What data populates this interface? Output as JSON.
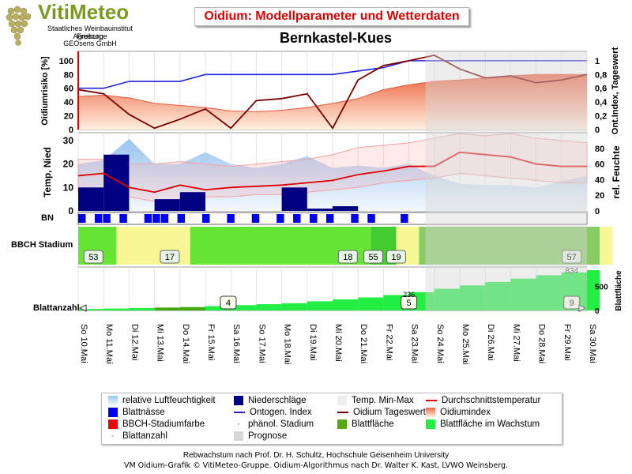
{
  "logo": {
    "title": "VitiMeteo",
    "line1": "Staatliches Weinbauinstitut Freiburg",
    "line2": "Agroscope",
    "line3": "GEOsens GmbH"
  },
  "header": {
    "title": "Oidium: Modellparameter und Wetterdaten",
    "location": "Bernkastel-Kues"
  },
  "axes": {
    "panel1_left_label": "Oidiumrisiko [%]",
    "panel1_right_label": "Ont.Index, Tageswert",
    "panel2_left_label": "Temp, Nied",
    "panel2_right_label": "rel. Feuchte",
    "bn_label": "BN",
    "bbch_label": "BBCH Stadium",
    "blatt_label": "Blattanzahl",
    "blatt_right_label": "Blattfläche",
    "panel1_left_ticks": [
      "0",
      "20",
      "40",
      "60",
      "80",
      "100"
    ],
    "panel1_right_ticks": [
      "0",
      "0,2",
      "0,4",
      "0,6",
      "0,8",
      "1"
    ],
    "panel2_left_ticks": [
      "0",
      "10",
      "20",
      "30"
    ],
    "panel2_right_ticks": [
      "0",
      "20",
      "40",
      "60",
      "80"
    ],
    "blatt_right_ticks": [
      "0",
      "500"
    ]
  },
  "dates": [
    "So 10.Mai",
    "Mo 11.Mai",
    "Di 12.Mai",
    "Mi 13.Mai",
    "Do 14.Mai",
    "Fr 15.Mai",
    "Sa 16.Mai",
    "So 17.Mai",
    "Mo 18.Mai",
    "Di 19.Mai",
    "Mi 20.Mai",
    "Do 21.Mai",
    "Fr 22.Mai",
    "Sa 23.Mai",
    "So 24.Mai",
    "Mo 25.Mai",
    "Di 26.Mai",
    "Mi 27.Mai",
    "Do 28.Mai",
    "Fr 29.Mai",
    "Sa 30.Mai"
  ],
  "series": {
    "ontogen_index": [
      0.6,
      0.6,
      0.7,
      0.7,
      0.7,
      0.8,
      0.8,
      0.8,
      0.8,
      0.8,
      0.8,
      0.85,
      0.9,
      1.0,
      1.0,
      1.0,
      1.0,
      1.0,
      1.0,
      1.0,
      1.0
    ],
    "oidium_tageswert": [
      0.58,
      0.52,
      0.22,
      0.02,
      0.15,
      0.3,
      0.02,
      0.42,
      0.45,
      0.52,
      0.02,
      0.72,
      0.93,
      1.0,
      1.08,
      0.88,
      0.75,
      0.78,
      0.68,
      0.72,
      0.8
    ],
    "oidiumindex_pct": [
      48,
      50,
      46,
      38,
      35,
      32,
      27,
      26,
      28,
      32,
      38,
      45,
      58,
      65,
      70,
      72,
      75,
      78,
      80,
      80,
      80
    ],
    "durchschnittstemperatur": [
      15,
      16,
      10,
      8,
      11,
      9,
      10,
      10.5,
      11,
      12,
      13,
      15.5,
      17,
      19,
      19,
      25,
      24,
      23,
      20,
      19,
      19
    ],
    "temp_min": [
      8,
      9,
      6,
      4,
      5,
      6,
      6,
      7,
      7,
      8,
      9,
      10,
      12,
      13,
      14,
      16,
      15,
      14,
      13,
      12,
      12
    ],
    "temp_max": [
      22,
      22,
      20,
      20,
      21,
      20,
      19,
      20,
      21,
      22,
      24,
      27,
      28,
      29,
      31,
      33,
      32,
      33,
      31,
      30,
      29
    ],
    "rel_feuchte": [
      60,
      65,
      92,
      60,
      60,
      75,
      60,
      55,
      60,
      70,
      55,
      58,
      55,
      60,
      45,
      35,
      33,
      33,
      30,
      38,
      45
    ],
    "niederschlag": [
      10,
      24,
      0,
      5,
      8,
      0,
      0,
      0,
      10,
      1,
      2,
      0,
      0,
      0,
      0,
      0,
      0,
      0,
      0,
      0,
      0
    ],
    "blattflaeche_cum": [
      30,
      40,
      50,
      60,
      70,
      90,
      110,
      130,
      150,
      190,
      230,
      270,
      320,
      380,
      450,
      520,
      590,
      660,
      730,
      790,
      834
    ]
  },
  "bbch": {
    "stages": [
      {
        "label": "53",
        "color": "#66e633"
      },
      {
        "label": "17",
        "color": "#f7f795"
      },
      {
        "label": "18",
        "color": "#66e633"
      },
      {
        "label": "55",
        "color": "#44cc33"
      },
      {
        "label": "19",
        "color": "#f7f795"
      },
      {
        "label": "57",
        "color": "#88cc66"
      }
    ]
  },
  "blattanzahl": {
    "badges": [
      "4",
      "5",
      "9"
    ],
    "top_value": "834",
    "extra_value": "236"
  },
  "legend": {
    "items": [
      {
        "label": "relative Luftfeuchtigkeit",
        "swatch": "gradient-blue"
      },
      {
        "label": "Niederschläge",
        "swatch": "navy"
      },
      {
        "label": "Temp. Min-Max",
        "swatch": "lightgray"
      },
      {
        "label": "Durchschnittstemperatur",
        "swatch": "red-line"
      },
      {
        "label": "Blattnässe",
        "swatch": "blue"
      },
      {
        "label": "Ontogen. Index",
        "swatch": "blue-line"
      },
      {
        "label": "Oidium Tageswert",
        "swatch": "darkred-line"
      },
      {
        "label": "Oidiumindex",
        "swatch": "gradient-orange"
      },
      {
        "label": "BBCH-Stadiumfarbe",
        "swatch": "red"
      },
      {
        "label": "phänol. Stadium",
        "swatch": "dot"
      },
      {
        "label": "Blattfläche",
        "swatch": "olive"
      },
      {
        "label": "Blattfläche im Wachstum",
        "swatch": "green"
      },
      {
        "label": "Blattanzahl",
        "swatch": "dot-red"
      },
      {
        "label": "Prognose",
        "swatch": "gray"
      }
    ]
  },
  "footer": {
    "line1": "Rebwachstum nach Prof. Dr. H. Schultz, Hochschule Geisenheim University",
    "line2": "VM Oidium-Grafik © VitiMeteo-Gruppe. Oidium-Algorithmus nach Dr. Walter K. Kast, LVWO Weinsberg."
  },
  "colors": {
    "ontogen": "#2222dd",
    "tageswert": "#7a0000",
    "avgtemp": "#e00000",
    "niederschlag": "#000080",
    "blattnaesse": "#0000ee",
    "prognose": "#d8d8d8"
  }
}
